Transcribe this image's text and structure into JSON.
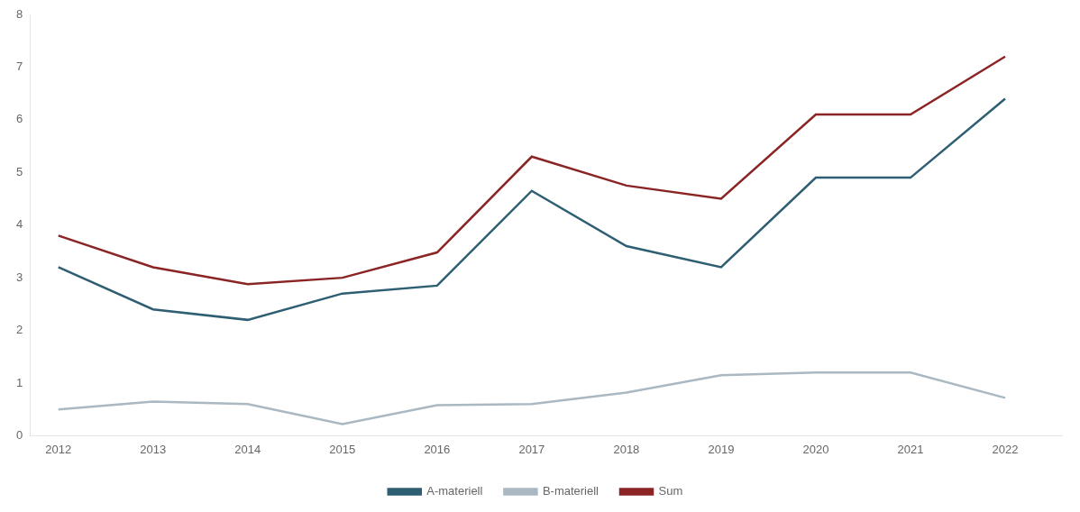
{
  "chart_data": {
    "type": "line",
    "x": [
      2012,
      2013,
      2014,
      2015,
      2016,
      2017,
      2018,
      2019,
      2020,
      2021,
      2022
    ],
    "series": [
      {
        "name": "A-materiell",
        "color": "#2E5E72",
        "values": [
          3.2,
          2.4,
          2.2,
          2.7,
          2.85,
          4.65,
          3.6,
          3.2,
          4.9,
          4.9,
          6.4
        ]
      },
      {
        "name": "B-materiell",
        "color": "#AAB8C2",
        "values": [
          0.5,
          0.65,
          0.6,
          0.22,
          0.58,
          0.6,
          0.82,
          1.15,
          1.2,
          1.2,
          0.72
        ]
      },
      {
        "name": "Sum",
        "color": "#8B2525",
        "values": [
          3.8,
          3.2,
          2.88,
          3.0,
          3.48,
          5.3,
          4.75,
          4.5,
          6.1,
          6.1,
          7.2
        ]
      }
    ],
    "xlim": [
      2011.7,
      2022.6
    ],
    "xticks": [
      2012,
      2013,
      2014,
      2015,
      2016,
      2017,
      2018,
      2019,
      2020,
      2021,
      2022
    ],
    "ylim": [
      0,
      8
    ],
    "yticks": [
      0,
      1,
      2,
      3,
      4,
      5,
      6,
      7,
      8
    ],
    "grid": false,
    "legend": "bottom"
  }
}
